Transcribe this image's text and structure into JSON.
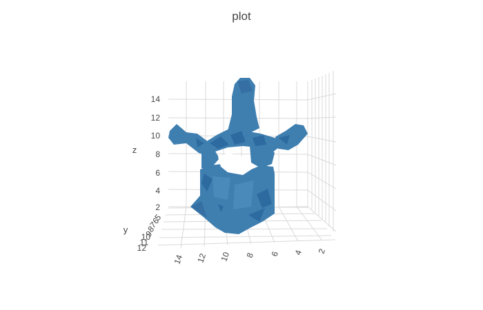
{
  "chart_data": {
    "type": "mesh3d",
    "title": "plot",
    "color": "#3f7fb0",
    "grid": true,
    "axes": {
      "x": {
        "title": "",
        "ticks": [
          "14",
          "12",
          "10",
          "8",
          "6",
          "4",
          "2"
        ]
      },
      "y": {
        "title": "y",
        "ticks": [
          "12",
          "11",
          "10",
          "9",
          "8",
          "7",
          "6",
          "5"
        ]
      },
      "z": {
        "title": "z",
        "ticks": [
          "14",
          "12",
          "10",
          "8",
          "6",
          "4",
          "2"
        ]
      }
    }
  }
}
